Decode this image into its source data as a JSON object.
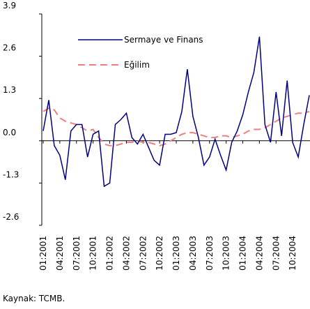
{
  "chart_data": {
    "type": "line",
    "categories": [
      "01:2001",
      null,
      null,
      "04:2001",
      null,
      null,
      "07:2001",
      null,
      null,
      "10:2001",
      null,
      null,
      "01:2002",
      null,
      null,
      "04:2002",
      null,
      null,
      "07:2002",
      null,
      null,
      "10:2002",
      null,
      null,
      "01:2003",
      null,
      null,
      "04:2003",
      null,
      null,
      "07:2003",
      null,
      null,
      "10:2003",
      null,
      null,
      "01:2004",
      null,
      null,
      "04:2004",
      null,
      null,
      "07:2004",
      null,
      null,
      "10:2004",
      null,
      null,
      null
    ],
    "series": [
      {
        "name": "Sermaye ve Finans",
        "color": "#000080",
        "dashed": false,
        "values": [
          0.3,
          1.25,
          -0.15,
          -0.45,
          -1.2,
          0.3,
          0.5,
          0.5,
          -0.5,
          0.2,
          0.3,
          -1.4,
          -1.3,
          0.5,
          0.65,
          0.85,
          0.1,
          -0.1,
          0.2,
          -0.2,
          -0.6,
          -0.75,
          0.2,
          0.2,
          0.25,
          0.9,
          2.2,
          0.75,
          0.1,
          -0.75,
          -0.5,
          0.05,
          -0.45,
          -0.9,
          -0.05,
          0.3,
          0.8,
          1.5,
          2.1,
          3.2,
          0.5,
          -0.05,
          1.5,
          0.15,
          1.85,
          -0.05,
          -0.5,
          0.5,
          1.4
        ]
      },
      {
        "name": "Eğilim",
        "color": "#f08080",
        "dashed": true,
        "values": [
          0.9,
          1.0,
          0.95,
          0.7,
          0.6,
          0.55,
          0.5,
          0.4,
          0.3,
          0.35,
          0.1,
          -0.1,
          -0.15,
          -0.15,
          -0.1,
          -0.05,
          -0.05,
          0,
          -0.05,
          -0.05,
          -0.1,
          -0.15,
          -0.1,
          0,
          0.1,
          0.2,
          0.25,
          0.25,
          0.2,
          0.15,
          0.1,
          0.1,
          0.15,
          0.15,
          0.1,
          0.15,
          0.2,
          0.3,
          0.35,
          0.35,
          0.4,
          0.5,
          0.6,
          0.7,
          0.75,
          0.8,
          0.85,
          0.85,
          0.9
        ]
      }
    ],
    "ylim": [
      -2.6,
      3.9
    ],
    "yticks": [
      -2.6,
      -1.3,
      {
        "value": 0,
        "label": "0.0"
      },
      1.3,
      2.6,
      3.9
    ],
    "source": "Kaynak: TCMB."
  }
}
